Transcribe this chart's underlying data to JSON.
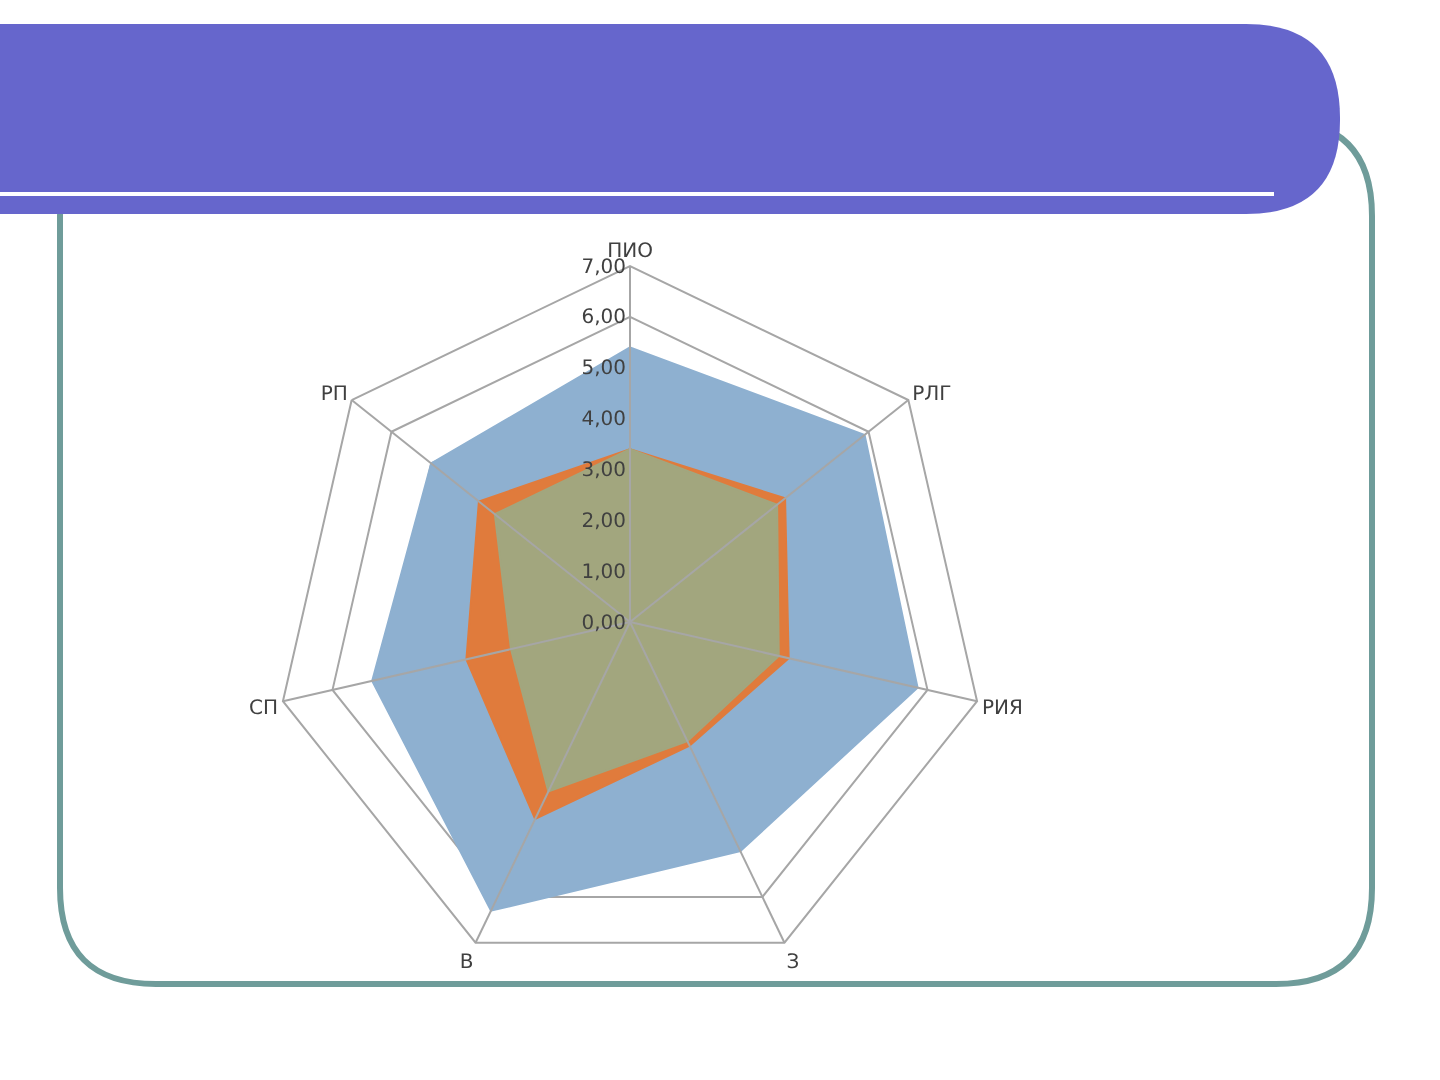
{
  "chart_data": {
    "type": "radar",
    "categories": [
      "ПИО",
      "РЛГ",
      "РИЯ",
      "З",
      "В",
      "СП",
      "РП"
    ],
    "series": [
      {
        "color": "#8eb0d0",
        "values": [
          5.4,
          5.9,
          5.8,
          5.0,
          6.3,
          5.2,
          5.0
        ]
      },
      {
        "color": "#e07b3c",
        "values": [
          3.4,
          3.9,
          3.2,
          2.7,
          4.3,
          3.3,
          3.8
        ]
      },
      {
        "color": "#a2a67e",
        "values": [
          3.4,
          3.7,
          3.0,
          2.6,
          3.7,
          2.4,
          3.4
        ]
      }
    ],
    "ylim": [
      0,
      7
    ],
    "yticks": [
      {
        "value": 0,
        "label": "0,00"
      },
      {
        "value": 1,
        "label": "1,00"
      },
      {
        "value": 2,
        "label": "2,00"
      },
      {
        "value": 3,
        "label": "3,00"
      },
      {
        "value": 4,
        "label": "4,00"
      },
      {
        "value": 5,
        "label": "5,00"
      },
      {
        "value": 6,
        "label": "6,00"
      },
      {
        "value": 7,
        "label": "7,00"
      }
    ],
    "grid": true
  }
}
